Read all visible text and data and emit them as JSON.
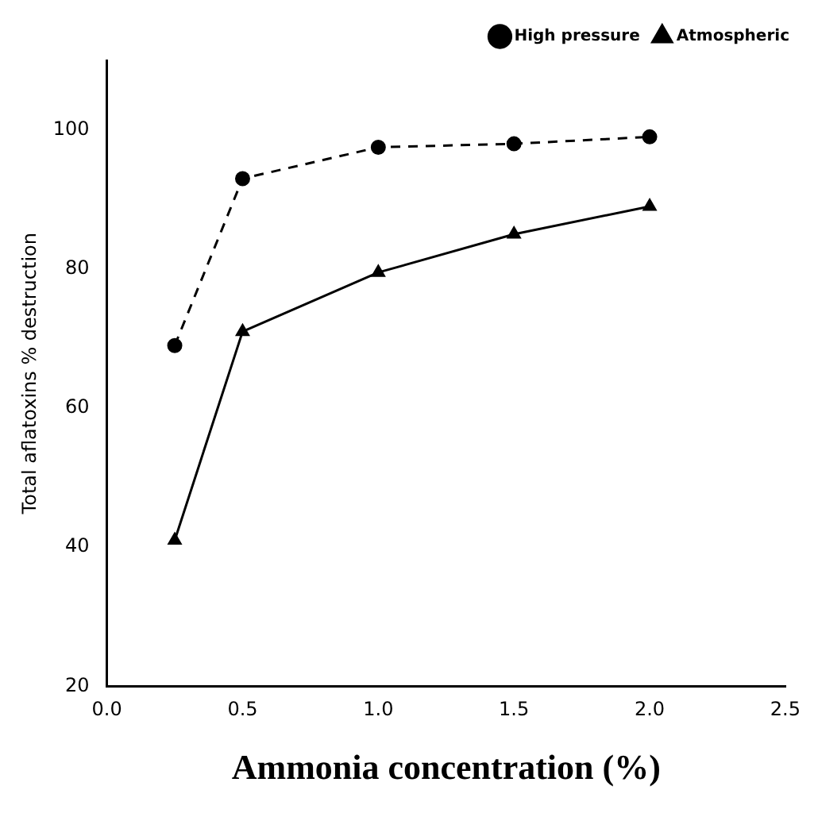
{
  "chart_data": {
    "type": "line",
    "xlabel": "Ammonia concentration (%)",
    "ylabel": "Total aflatoxins % destruction",
    "x": [
      0.25,
      0.5,
      1.0,
      1.5,
      2.0
    ],
    "series": [
      {
        "name": "High pressure",
        "color": "#000000",
        "values": [
          69,
          93,
          97.5,
          98,
          99
        ],
        "marker": "circle",
        "line_style": "dashed"
      },
      {
        "name": "Atmospheric",
        "color": "#000000",
        "values": [
          41,
          71,
          79.5,
          85,
          89
        ],
        "marker": "triangle",
        "line_style": "solid"
      }
    ],
    "xlim": [
      0,
      2.5
    ],
    "xticks": [
      {
        "value": 0,
        "label": "0.0"
      },
      {
        "value": 0.5,
        "label": "0.5"
      },
      {
        "value": 1,
        "label": "1.0"
      },
      {
        "value": 1.5,
        "label": "1.5"
      },
      {
        "value": 2,
        "label": "2.0"
      },
      {
        "value": 2.5,
        "label": "2.5"
      }
    ],
    "ylim": [
      20,
      110
    ],
    "yticks": [
      20,
      40,
      60,
      80,
      100
    ],
    "grid": false,
    "legend": "top right"
  }
}
